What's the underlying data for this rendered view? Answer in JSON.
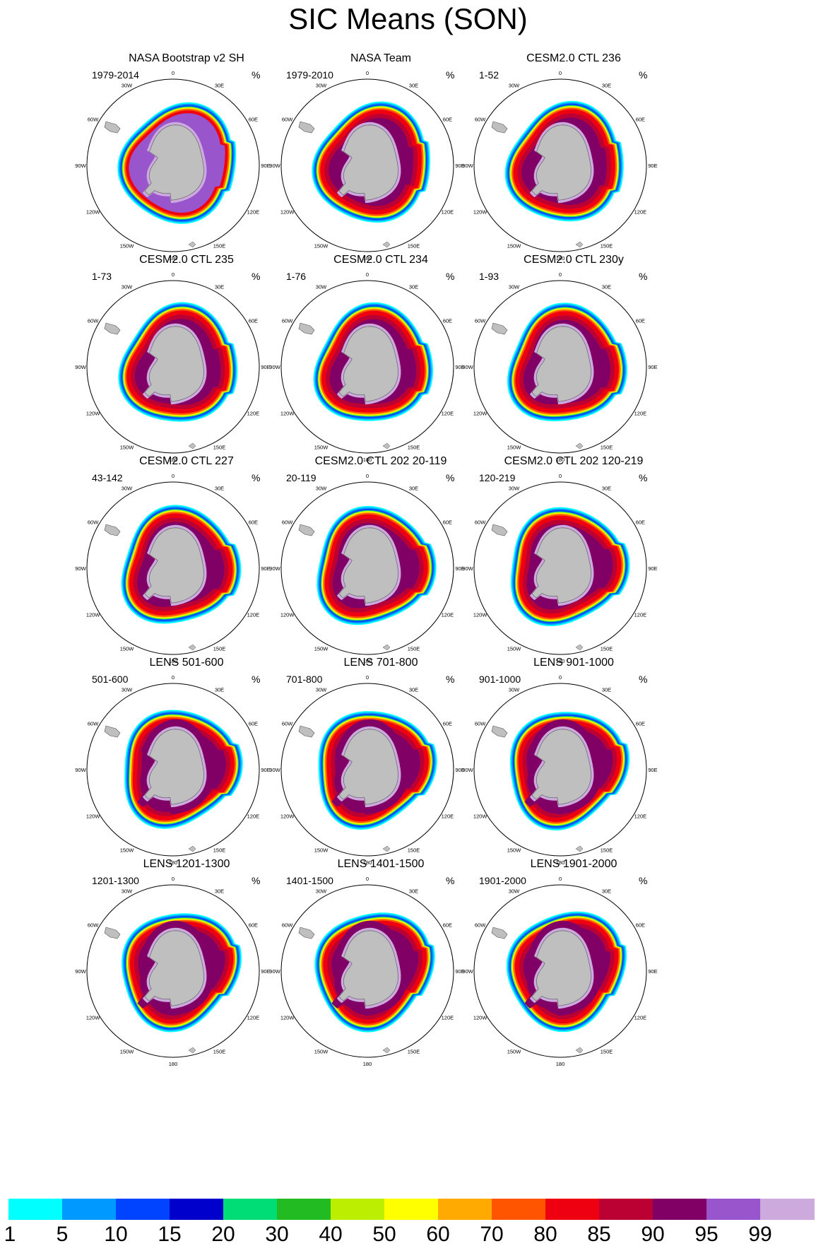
{
  "title": "SIC Means (SON)",
  "units": "%",
  "lon_labels": [
    "0",
    "30E",
    "60E",
    "90E",
    "120E",
    "150E",
    "180",
    "150W",
    "120W",
    "90W",
    "60W",
    "30W"
  ],
  "panels": [
    {
      "title": "NASA Bootstrap v2 SH",
      "period": "1979-2014"
    },
    {
      "title": "NASA Team",
      "period": "1979-2010"
    },
    {
      "title": "CESM2.0 CTL 236",
      "period": "1-52"
    },
    {
      "title": "CESM2.0 CTL 235",
      "period": "1-73"
    },
    {
      "title": "CESM2.0 CTL 234",
      "period": "1-76"
    },
    {
      "title": "CESM2.0 CTL 230y",
      "period": "1-93"
    },
    {
      "title": "CESM2.0 CTL 227",
      "period": "43-142"
    },
    {
      "title": "CESM2.0 CTL 202 20-119",
      "period": "20-119"
    },
    {
      "title": "CESM2.0 CTL 202 120-219",
      "period": "120-219"
    },
    {
      "title": "LENS 501-600",
      "period": "501-600"
    },
    {
      "title": "LENS 701-800",
      "period": "701-800"
    },
    {
      "title": "LENS 901-1000",
      "period": "901-1000"
    },
    {
      "title": "LENS 1201-1300",
      "period": "1201-1300"
    },
    {
      "title": "LENS 1401-1500",
      "period": "1401-1500"
    },
    {
      "title": "LENS 1901-2000",
      "period": "1901-2000"
    }
  ],
  "colorbar": {
    "levels": [
      "1",
      "5",
      "10",
      "15",
      "20",
      "30",
      "40",
      "50",
      "60",
      "70",
      "80",
      "85",
      "90",
      "95",
      "99"
    ],
    "colors": [
      "#00ffff",
      "#0099ff",
      "#0044ff",
      "#0000cc",
      "#00dd77",
      "#22bb22",
      "#bbee00",
      "#ffff00",
      "#ffaa00",
      "#ff5500",
      "#ee0011",
      "#bb0033",
      "#800066",
      "#9955cc",
      "#ccaadd"
    ]
  }
}
